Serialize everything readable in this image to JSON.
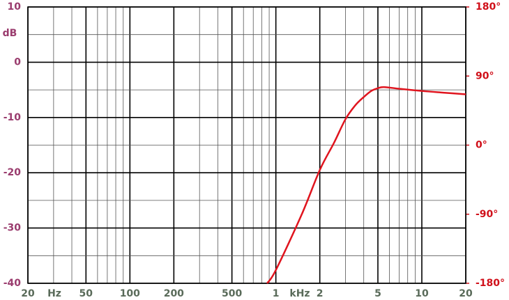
{
  "chart_data": {
    "type": "line",
    "ylabel": "dB",
    "xlabel_left": "Hz",
    "xlabel_right": "kHz",
    "log_x": true,
    "grid": true,
    "xlim": [
      20,
      20000
    ],
    "xticks": [
      20,
      50,
      100,
      200,
      500,
      {
        "value": 1000,
        "label": "1"
      },
      2,
      5,
      10,
      20
    ],
    "xminorticks": [
      30,
      40,
      60,
      70,
      80,
      90,
      300,
      400,
      600,
      700,
      800,
      900,
      3000,
      4000,
      6000,
      7000,
      8000,
      9000
    ],
    "ylim": [
      -40,
      10
    ],
    "yticks": [
      10,
      0,
      -10,
      -20,
      -30,
      -40
    ],
    "yminorticks": [
      5,
      -5,
      -15,
      -25,
      -35
    ],
    "y2lim": [
      -180,
      180
    ],
    "y2ticks": [
      {
        "value": 180,
        "label": "180°"
      },
      {
        "value": 90,
        "label": "90°"
      },
      {
        "value": 0,
        "label": "0°"
      },
      {
        "value": -90,
        "label": "-90°"
      },
      {
        "value": -180,
        "label": "-180°"
      }
    ],
    "x": [
      871,
      1000,
      1500,
      2000,
      2500,
      3000,
      3500,
      4000,
      4500,
      5000,
      5500,
      7000,
      10000,
      14000,
      20000
    ],
    "series": [
      {
        "name": null,
        "color": "#e0141e",
        "values": [
          -40,
          -37.6,
          -27.6,
          -19.5,
          -14.6,
          -10.3,
          -7.8,
          -6.3,
          -5.2,
          -4.7,
          -4.5,
          -4.8,
          -5.2,
          -5.5,
          -5.8
        ]
      }
    ]
  }
}
